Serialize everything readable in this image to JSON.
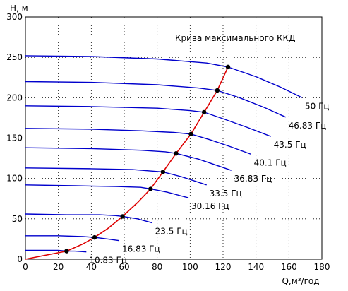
{
  "chart_data": {
    "type": "line",
    "title": "",
    "ylabel": "H, м",
    "xlabel": "Q,м³/год",
    "xlim": [
      0,
      180
    ],
    "ylim": [
      0,
      300
    ],
    "xticks": [
      0,
      20,
      40,
      60,
      80,
      100,
      120,
      140,
      160,
      180
    ],
    "yticks": [
      0,
      50,
      100,
      150,
      200,
      250,
      300
    ],
    "grid": true,
    "colors": {
      "curves": "#0000cc",
      "efficiency": "#dd0000",
      "points": "#000000"
    },
    "annotation": "Крива максимального ККД",
    "series": [
      {
        "name": "50 Гц",
        "x": [
          0,
          40,
          80,
          110,
          123,
          140,
          155,
          168
        ],
        "y": [
          252,
          251,
          248,
          243,
          238,
          226,
          213,
          200
        ]
      },
      {
        "name": "46.83 Гц",
        "x": [
          0,
          40,
          80,
          105,
          116.5,
          130,
          145,
          158
        ],
        "y": [
          220,
          219,
          216,
          212,
          209,
          200,
          188,
          176
        ]
      },
      {
        "name": "43.5 Гц",
        "x": [
          0,
          40,
          80,
          100,
          108.5,
          120,
          135,
          149
        ],
        "y": [
          190,
          189,
          187,
          184,
          182,
          174,
          163,
          152
        ]
      },
      {
        "name": "40.1 Гц",
        "x": [
          0,
          40,
          70,
          90,
          100.5,
          112,
          125,
          137
        ],
        "y": [
          162,
          161,
          159,
          157,
          155,
          148,
          139,
          130
        ]
      },
      {
        "name": "36.83 Гц",
        "x": [
          0,
          40,
          70,
          85,
          91.5,
          105,
          125
        ],
        "y": [
          138,
          137,
          135,
          133,
          131,
          124,
          110
        ]
      },
      {
        "name": "33.5 Гц",
        "x": [
          0,
          40,
          65,
          78,
          83.5,
          95,
          110
        ],
        "y": [
          113,
          112,
          111,
          109,
          108,
          102,
          92
        ]
      },
      {
        "name": "30.16 Гц",
        "x": [
          0,
          30,
          55,
          70,
          76,
          86,
          99
        ],
        "y": [
          92,
          91,
          90,
          89,
          87,
          83,
          76
        ]
      },
      {
        "name": "23.5 Гц",
        "x": [
          0,
          25,
          45,
          55,
          59,
          68,
          77
        ],
        "y": [
          56,
          55,
          55,
          54,
          53,
          50,
          45
        ]
      },
      {
        "name": "16.83 Гц",
        "x": [
          0,
          20,
          35,
          42,
          50,
          57
        ],
        "y": [
          29,
          29,
          28,
          27,
          25,
          23
        ]
      },
      {
        "name": "10.83 Гц",
        "x": [
          0,
          12,
          20,
          25,
          30,
          37
        ],
        "y": [
          11,
          11,
          11,
          10,
          10,
          9
        ]
      }
    ],
    "efficiency_curve": {
      "x": [
        0,
        10,
        20,
        25,
        35,
        42,
        50,
        59,
        68,
        76,
        83.5,
        91.5,
        100.5,
        108.5,
        116.5,
        123
      ],
      "y": [
        0,
        4,
        8,
        10,
        19,
        27,
        38,
        53,
        70,
        87,
        108,
        131,
        155,
        182,
        209,
        238
      ]
    },
    "labels": [
      "50 Гц",
      "46.83 Гц",
      "43.5 Гц",
      "40.1 Гц",
      "36.83 Гц",
      "33.5 Гц",
      "30.16 Гц",
      "23.5 Гц",
      "16.83 Гц",
      "10.83 Гц"
    ]
  }
}
